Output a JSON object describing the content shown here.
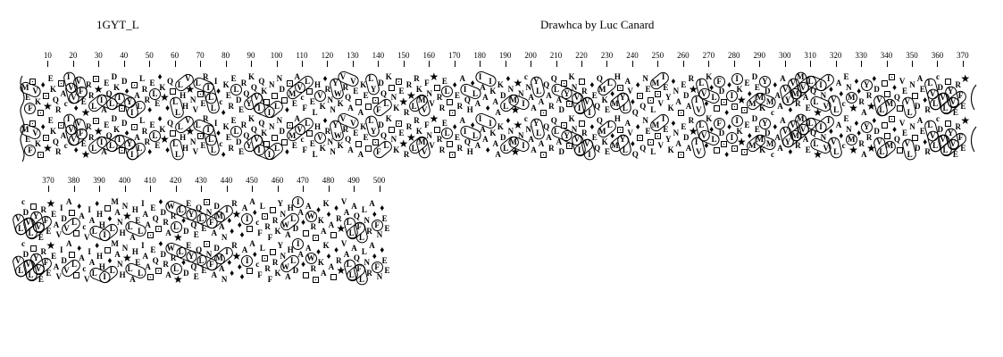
{
  "header": {
    "title": "1GYT_L",
    "credit": "Drawhca by Luc Canard"
  },
  "colors": {
    "background": "#ffffff",
    "ink": "#000000"
  },
  "encoding": {
    "proline_symbol": "filled-star",
    "glycine_symbol": "filled-diamond",
    "threonine_symbol": "open-square",
    "serine_symbol": "dotted-square",
    "cysteine_symbol": "lowercase-c",
    "hydrophobic_residues": "VILFMWY",
    "hydrophobic_rendering": "cluster-contour-outlines"
  },
  "sequence": "MEFSVKSGSPEKQRSACIVVGVFEPRRLSPIAEQLDKISDGYISALLRRGELEGKPGQTLLLHHVPNVLSERILLIGCGKERELDERQYKQVIQKTINTLNDTGSMEAVCFLTELHVKGRNNYWKVRQAVETAKETLYSFDQLKTNKSEPRRPLRKMVFNVPTRRELTSGERAIQHGLAIAAGIKAAKDLGNMPPNICNAAYLASQARQLADSYSKNVITRVIGEQQMKELGMHSYLAVGQGSQNESLMSVIEYKGNASEDARPIVLVGKGLTFDSGGISIKPSEGMDEMKYDMCGAAAVYGVMRMVAELQLPINVIGVLAGCENMPGGRAYRPGDVLTTMSGQTVEVLNTDAEGRLVLCDVLTYVERFEPEAVIDVATLTGACVIALGHHITGLMANHNPLAHELIAASEQSGDRAWRLPLGDEYQEQLESNFADMANIGGRPGGAITAGCFLSRFTRKYNWAHLDIAGTAWRSGKAKGATGRPVALLAQFLLNRAGFNGEE",
  "strips": [
    {
      "tick_start": 10,
      "tick_end": 370,
      "tick_step": 10,
      "res_start": 1,
      "res_end": 371
    },
    {
      "tick_start": 370,
      "tick_end": 500,
      "tick_step": 10,
      "res_start": 358,
      "res_end": 503
    }
  ]
}
